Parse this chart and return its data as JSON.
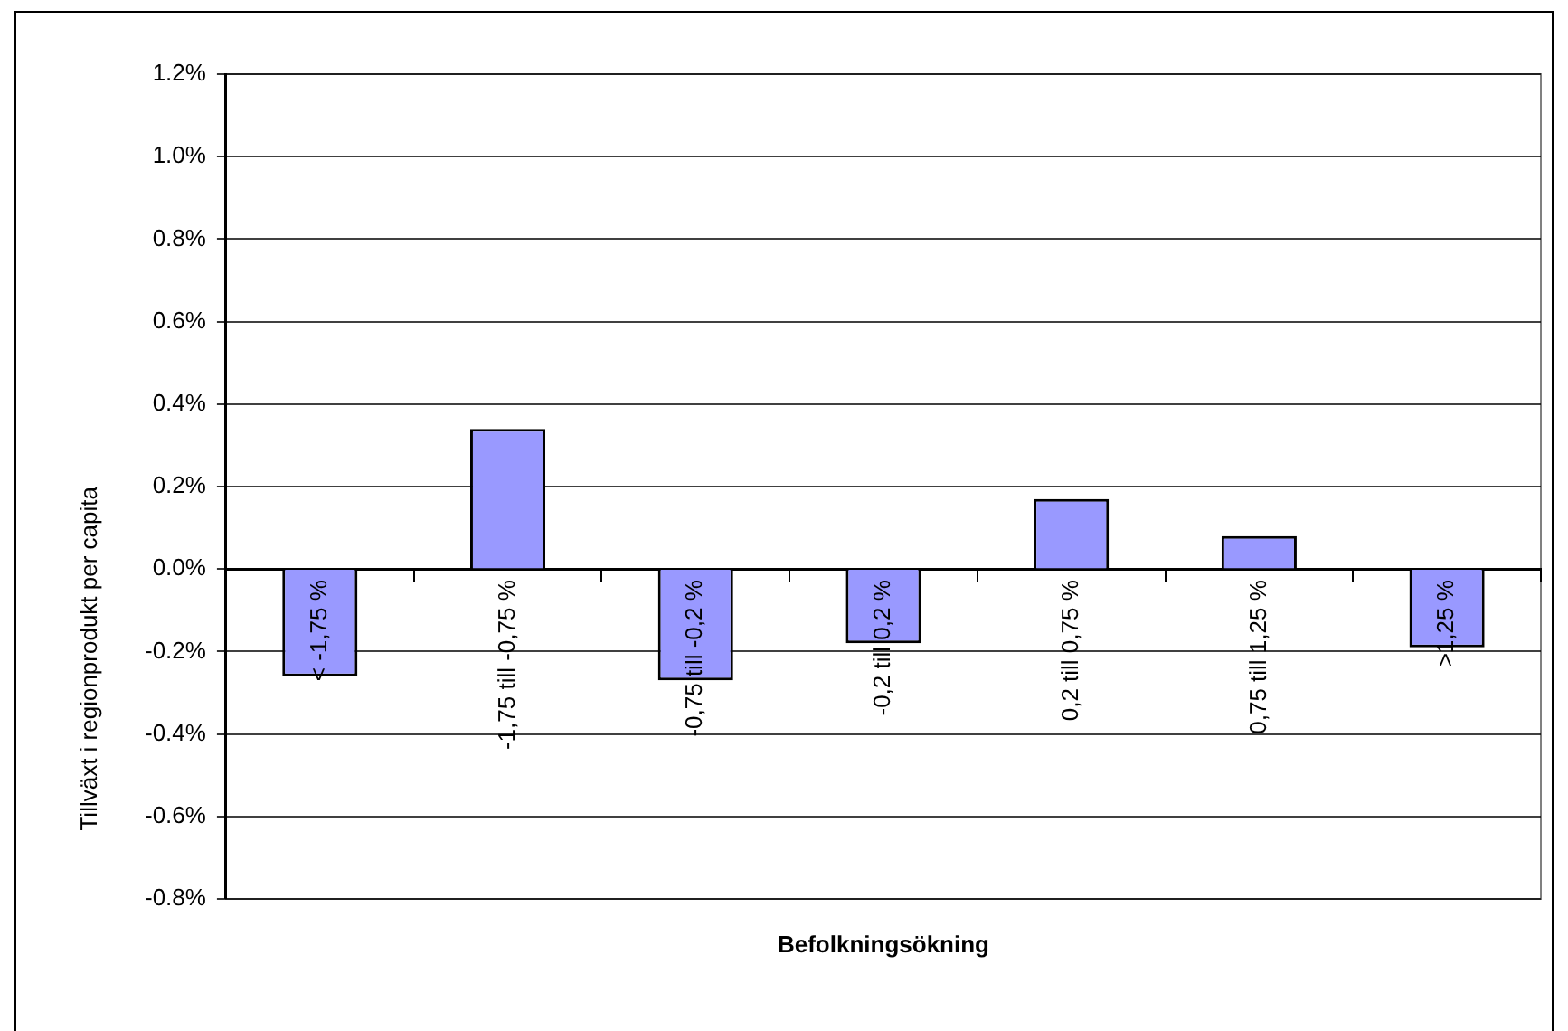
{
  "chart_data": {
    "type": "bar",
    "xlabel": "Befolkningsökning",
    "ylabel": "Tillväxt i regionprodukt per capita",
    "categories": [
      "< -1,75 %",
      "-1,75 till -0,75 %",
      "-0,75 till -0,2 %",
      "-0,2 till 0,2 %",
      "0,2 till 0,75 %",
      "0,75 till 1,25 %",
      ">1,25 %"
    ],
    "values": [
      -0.26,
      0.34,
      -0.27,
      -0.18,
      0.17,
      0.08,
      -0.19
    ],
    "color": "#9999ff",
    "ylim": [
      -0.8,
      1.2
    ],
    "yticks": [
      {
        "value": -0.8,
        "label": "-0.8%"
      },
      {
        "value": -0.6,
        "label": "-0.6%"
      },
      {
        "value": -0.4,
        "label": "-0.4%"
      },
      {
        "value": -0.2,
        "label": "-0.2%"
      },
      {
        "value": 0,
        "label": "0.0%"
      },
      {
        "value": 0.2,
        "label": "0.2%"
      },
      {
        "value": 0.4,
        "label": "0.4%"
      },
      {
        "value": 0.6,
        "label": "0.6%"
      },
      {
        "value": 0.8,
        "label": "0.8%"
      },
      {
        "value": 1.0,
        "label": "1.0%"
      },
      {
        "value": 1.2,
        "label": "1.2%"
      }
    ],
    "grid": "y",
    "legend": false
  }
}
